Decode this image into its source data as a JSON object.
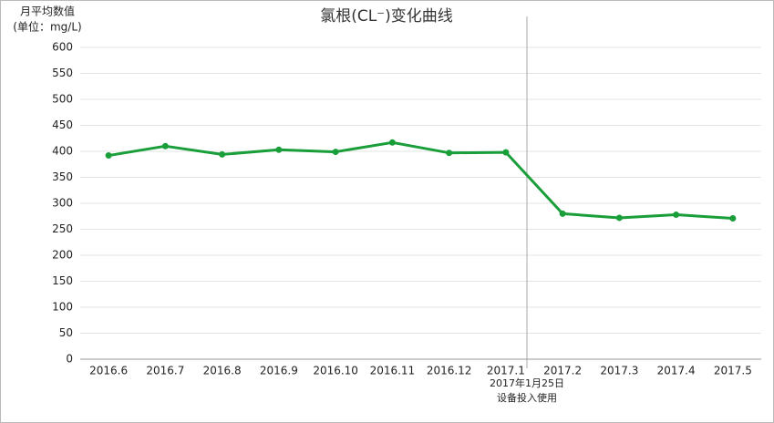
{
  "chart_data": {
    "type": "line",
    "title": "氯根(CL⁻)变化曲线",
    "y_label": [
      "月平均数值",
      "(单位：mg/L)"
    ],
    "categories": [
      "2016.6",
      "2016.7",
      "2016.8",
      "2016.9",
      "2016.10",
      "2016.11",
      "2016.12",
      "2017.1",
      "2017.2",
      "2017.3",
      "2017.4",
      "2017.5"
    ],
    "series": [
      {
        "color": "#1a9e3a",
        "values": [
          392,
          410,
          394,
          403,
          399,
          417,
          397,
          398,
          280,
          272,
          278,
          271
        ]
      }
    ],
    "ylim": [
      0,
      600
    ],
    "yticks": [
      0,
      50,
      100,
      150,
      200,
      250,
      300,
      350,
      400,
      450,
      500,
      550,
      600
    ],
    "grid": true,
    "annotation": [
      "2017年1月25日",
      "设备投入使用"
    ]
  }
}
